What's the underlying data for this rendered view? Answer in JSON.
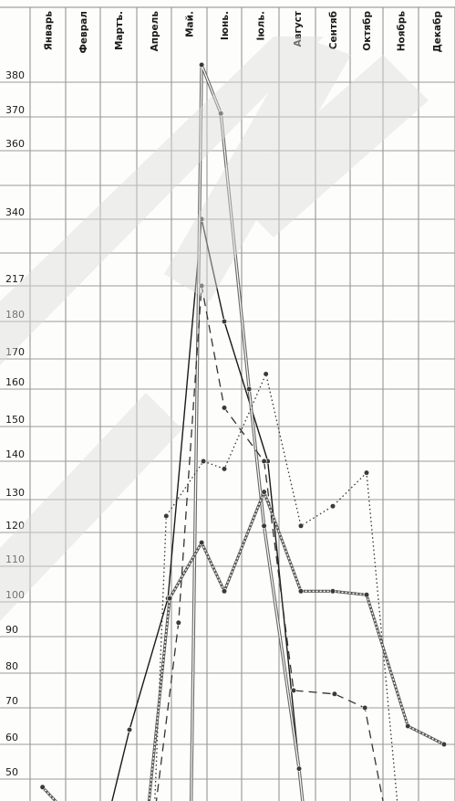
{
  "chart_data": {
    "type": "line",
    "categories": [
      "Январь",
      "Феврал",
      "Мартъ.",
      "Апрель",
      "Май.",
      "Іюнь.",
      "Іюль.",
      "Август",
      "Сентяб",
      "Октябр",
      "Ноябрь",
      "Декабр"
    ],
    "y_ticks": [
      380,
      370,
      360,
      340,
      217,
      180,
      170,
      160,
      150,
      140,
      130,
      120,
      110,
      100,
      90,
      80,
      70,
      60,
      50
    ],
    "grid": true,
    "series": [
      {
        "style": "solid",
        "color": "#1a1a1a",
        "points": [
          [
            2.2,
            40
          ],
          [
            2.8,
            64
          ],
          [
            3.9,
            101
          ],
          [
            4.85,
            340
          ],
          [
            5.5,
            180
          ],
          [
            6.7,
            140
          ],
          [
            7.7,
            40
          ]
        ]
      },
      {
        "style": "double",
        "color": "#666666",
        "points": [
          [
            4.55,
            40
          ],
          [
            4.85,
            385
          ],
          [
            5.4,
            371
          ],
          [
            6.2,
            160
          ],
          [
            6.6,
            122
          ],
          [
            7.55,
            53
          ],
          [
            7.7,
            40
          ]
        ]
      },
      {
        "style": "dashed",
        "color": "#333333",
        "points": [
          [
            3.5,
            40
          ],
          [
            4.2,
            94
          ],
          [
            4.85,
            217
          ],
          [
            5.5,
            155
          ],
          [
            6.6,
            140
          ],
          [
            7.4,
            75
          ],
          [
            8.55,
            74
          ],
          [
            9.45,
            70
          ],
          [
            10.1,
            40
          ]
        ]
      },
      {
        "style": "dotted",
        "color": "#333333",
        "points": [
          [
            3.5,
            40
          ],
          [
            3.85,
            125
          ],
          [
            4.9,
            140
          ],
          [
            5.5,
            138
          ],
          [
            6.65,
            165
          ],
          [
            7.6,
            122
          ],
          [
            8.5,
            128
          ],
          [
            9.5,
            137
          ],
          [
            10.45,
            40
          ]
        ]
      },
      {
        "style": "chain",
        "color": "#555555",
        "points": [
          [
            0.35,
            48
          ],
          [
            1.2,
            40
          ],
          [
            3.3,
            40
          ],
          [
            3.95,
            101
          ],
          [
            4.85,
            117
          ],
          [
            5.5,
            103
          ],
          [
            6.6,
            132
          ],
          [
            7.6,
            103
          ],
          [
            8.5,
            103
          ],
          [
            9.5,
            102
          ],
          [
            10.7,
            65
          ],
          [
            11.7,
            60
          ]
        ]
      }
    ]
  }
}
